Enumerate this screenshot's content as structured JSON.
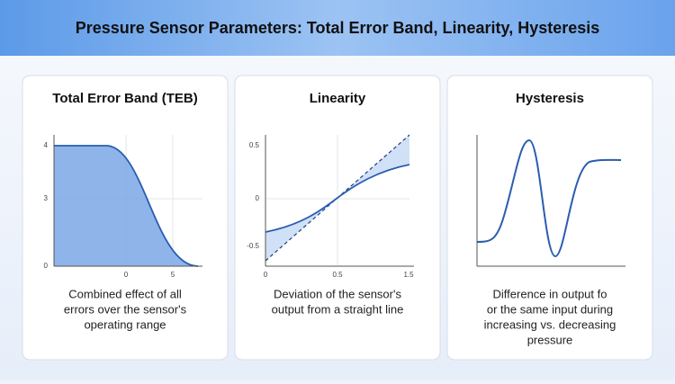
{
  "header": {
    "title": "Pressure Sensor Parameters: Total Error Band, Linearity, Hysteresis"
  },
  "panels": [
    {
      "title": "Total Error Band (TEB)",
      "yticks": [
        "4",
        "3",
        "0"
      ],
      "xticks": [
        "0",
        "5"
      ],
      "caption": [
        "Combined effect of all",
        "errors over the sensor's",
        "operating range"
      ]
    },
    {
      "title": "Linearity",
      "yticks": [
        "0.5",
        "0",
        "-0.5"
      ],
      "xticks": [
        "0",
        "0.5",
        "1.5"
      ],
      "caption": [
        "Deviation of the sensor's",
        "output from a straight line"
      ]
    },
    {
      "title": "Hysteresis",
      "yticks": [],
      "xticks": [],
      "caption": [
        "Difference in output fo",
        "or the same input during",
        "increasing vs. decreasing",
        "pressure"
      ]
    }
  ]
}
